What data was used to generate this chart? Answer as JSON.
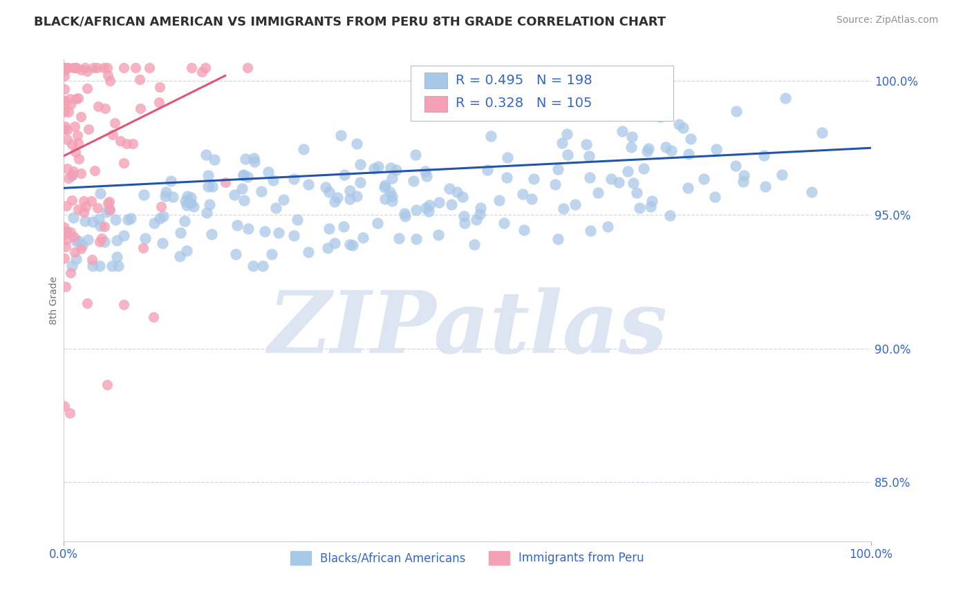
{
  "title": "BLACK/AFRICAN AMERICAN VS IMMIGRANTS FROM PERU 8TH GRADE CORRELATION CHART",
  "source": "Source: ZipAtlas.com",
  "ylabel": "8th Grade",
  "xlim": [
    0.0,
    1.0
  ],
  "ylim": [
    0.828,
    1.008
  ],
  "yticks_right": [
    0.85,
    0.9,
    0.95,
    1.0
  ],
  "ytick_labels_right": [
    "85.0%",
    "90.0%",
    "95.0%",
    "100.0%"
  ],
  "blue_R": 0.495,
  "blue_N": 198,
  "pink_R": 0.328,
  "pink_N": 105,
  "blue_color": "#a8c8e8",
  "pink_color": "#f4a0b5",
  "blue_line_color": "#2255aa",
  "pink_line_color": "#dd5577",
  "legend_text_color": "#3366cc",
  "title_color": "#303030",
  "source_color": "#909090",
  "watermark_color": "#dde4f2",
  "watermark_text": "ZIPatlas",
  "background_color": "#ffffff",
  "grid_color": "#ccd8e8",
  "right_axis_color": "#3366cc",
  "blue_label": "Blacks/African Americans",
  "pink_label": "Immigrants from Peru",
  "blue_trend_start_x": 0.0,
  "blue_trend_start_y": 0.96,
  "blue_trend_end_x": 1.0,
  "blue_trend_end_y": 0.975,
  "pink_trend_start_x": 0.0,
  "pink_trend_start_y": 0.972,
  "pink_trend_end_x": 0.2,
  "pink_trend_end_y": 1.002
}
